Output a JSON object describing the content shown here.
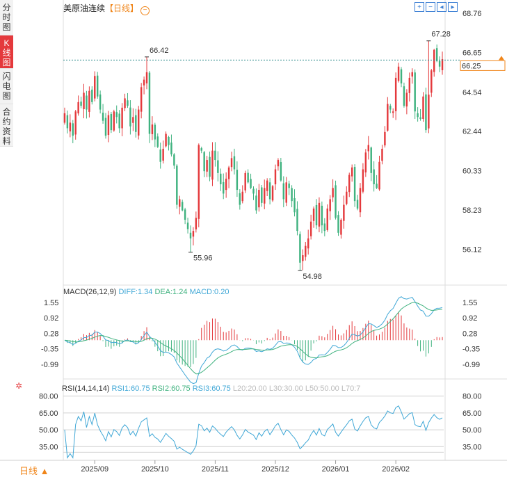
{
  "side_tabs": [
    {
      "label": "分时图",
      "active": false
    },
    {
      "label": "K线图",
      "active": true
    },
    {
      "label": "闪电图",
      "active": false
    },
    {
      "label": "合约资料",
      "active": false
    }
  ],
  "header": {
    "name": "美原油连续",
    "period_bracket": "【日线】",
    "fold_icon": "collapse-circle-icon"
  },
  "toolbar": {
    "icons": [
      "zoom-in-icon",
      "zoom-out-icon",
      "move-left-icon",
      "move-right-icon"
    ]
  },
  "colors": {
    "up": "#e4393c",
    "down": "#3fb27f",
    "ma1": "#3fa7d6",
    "ma2": "#3fb27f",
    "rsi": "#3fa7d6",
    "last_price": "#f08519"
  },
  "chart_data": {
    "type": "candlestick",
    "x_tick_labels": [
      "2025/09",
      "2025/10",
      "2025/11",
      "2025/12",
      "2026/01",
      "2026/02"
    ],
    "x_tick_index": [
      11,
      33,
      55,
      77,
      99,
      121
    ],
    "price_axis": {
      "ticks": [
        "68.76",
        "66.65",
        "64.54",
        "62.44",
        "60.33",
        "58.23",
        "56.12"
      ],
      "ylim": [
        54.2,
        68.76
      ]
    },
    "last_price": "66.25",
    "annotations": {
      "high_left": "66.42",
      "high_right": "67.28",
      "low_left": "55.96",
      "low_right": "54.98"
    },
    "annotation_index": {
      "high_left": 30,
      "high_right": 133,
      "low_left": 46,
      "low_right": 86
    },
    "close": [
      63.4,
      62.6,
      62.9,
      62.2,
      63.5,
      64.0,
      63.8,
      64.5,
      63.6,
      64.6,
      64.0,
      65.4,
      64.3,
      63.6,
      63.0,
      62.2,
      63.3,
      62.5,
      63.5,
      63.2,
      62.6,
      63.7,
      64.2,
      63.8,
      62.7,
      63.2,
      62.4,
      63.6,
      64.8,
      65.2,
      65.6,
      62.3,
      62.8,
      62.0,
      61.6,
      60.8,
      61.5,
      62.3,
      61.7,
      61.2,
      60.6,
      58.5,
      58.8,
      58.2,
      57.7,
      57.2,
      56.7,
      57.1,
      57.8,
      61.7,
      61.4,
      60.3,
      60.9,
      60.0,
      61.4,
      60.9,
      60.2,
      59.6,
      59.1,
      59.9,
      60.5,
      61.0,
      60.4,
      59.3,
      58.5,
      59.2,
      60.2,
      59.7,
      59.4,
      59.1,
      58.2,
      59.3,
      58.6,
      59.4,
      59.8,
      58.8,
      59.5,
      60.4,
      60.9,
      59.8,
      58.8,
      59.7,
      59.4,
      58.7,
      58.1,
      57.1,
      55.4,
      55.8,
      56.3,
      56.7,
      57.6,
      58.3,
      57.4,
      58.6,
      57.4,
      57.1,
      58.3,
      58.8,
      59.4,
      57.8,
      57.0,
      57.7,
      58.5,
      59.2,
      60.1,
      60.5,
      58.7,
      58.3,
      59.4,
      60.4,
      61.3,
      61.7,
      60.2,
      59.6,
      59.4,
      60.8,
      61.5,
      62.4,
      63.9,
      63.6,
      63.5,
      65.3,
      65.9,
      65.0,
      63.8,
      64.5,
      65.3,
      65.6,
      63.5,
      63.2,
      63.1,
      64.3,
      62.5,
      64.4,
      65.7,
      66.8,
      66.2,
      65.9,
      66.3
    ],
    "volume_macd": {
      "diff": "1.34",
      "dea": "1.24",
      "macd": "0.20"
    },
    "macd_axis": {
      "ticks": [
        "1.55",
        "0.92",
        "0.28",
        "-0.35",
        "-0.99"
      ],
      "ylim": [
        -1.45,
        1.75
      ]
    },
    "rsi": {
      "rsi1": "60.75",
      "rsi2": "60.75",
      "rsi3": "60.75",
      "ylim": [
        24,
        86
      ],
      "ticks": [
        "80.00",
        "65.00",
        "50.00",
        "35.00"
      ]
    },
    "labels": {
      "macd": "MACD(26,12,9)",
      "diff_label": "DIFF:",
      "dea_label": "DEA:",
      "macd_label": "MACD:",
      "rsi": "RSI(14,14,14)",
      "rsi1_label": "RSI1:",
      "rsi2_label": "RSI2:",
      "rsi3_label": "RSI3:",
      "levels": [
        "L20:20.00",
        "L30:30.00",
        "L50:50.00",
        "L70:7"
      ]
    },
    "grid": false
  },
  "footer": {
    "period_label": "日线",
    "period_arrow": "▲"
  }
}
